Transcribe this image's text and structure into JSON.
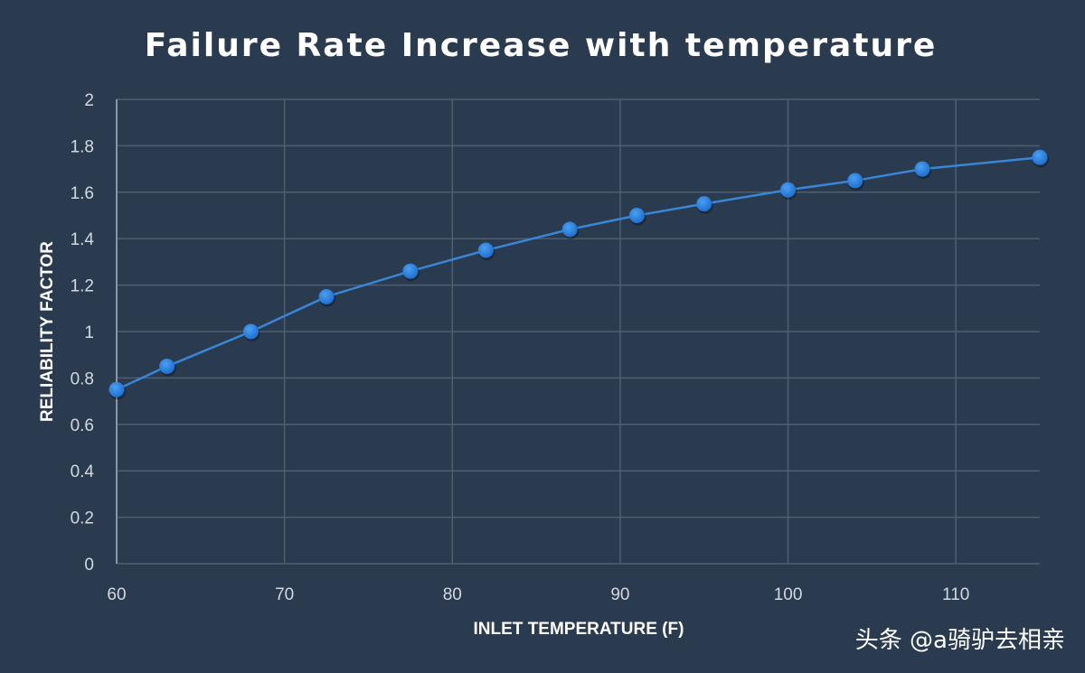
{
  "chart_data": {
    "type": "line",
    "title": "Failure Rate Increase with temperature",
    "xlabel": "INLET TEMPERATURE (F)",
    "ylabel": "RELIABILITY FACTOR",
    "xlim": [
      60,
      115
    ],
    "ylim": [
      0,
      2
    ],
    "xticks": [
      60,
      70,
      80,
      90,
      100,
      110
    ],
    "yticks": [
      "0",
      "0.2",
      "0.4",
      "0.6",
      "0.8",
      "1",
      "1.2",
      "1.4",
      "1.6",
      "1.8",
      "2"
    ],
    "grid": true,
    "x": [
      60,
      63,
      68,
      72.5,
      77.5,
      82,
      87,
      91,
      95,
      100,
      104,
      108,
      115
    ],
    "y": [
      0.75,
      0.85,
      1.0,
      1.15,
      1.26,
      1.35,
      1.44,
      1.5,
      1.55,
      1.61,
      1.65,
      1.7,
      1.75
    ],
    "colors": {
      "background": "#2a3a4f",
      "line": "#3a86d6",
      "marker": "#1f6fd0",
      "grid": "#4f5f72"
    }
  },
  "watermark": "头条 @a骑驴去相亲"
}
